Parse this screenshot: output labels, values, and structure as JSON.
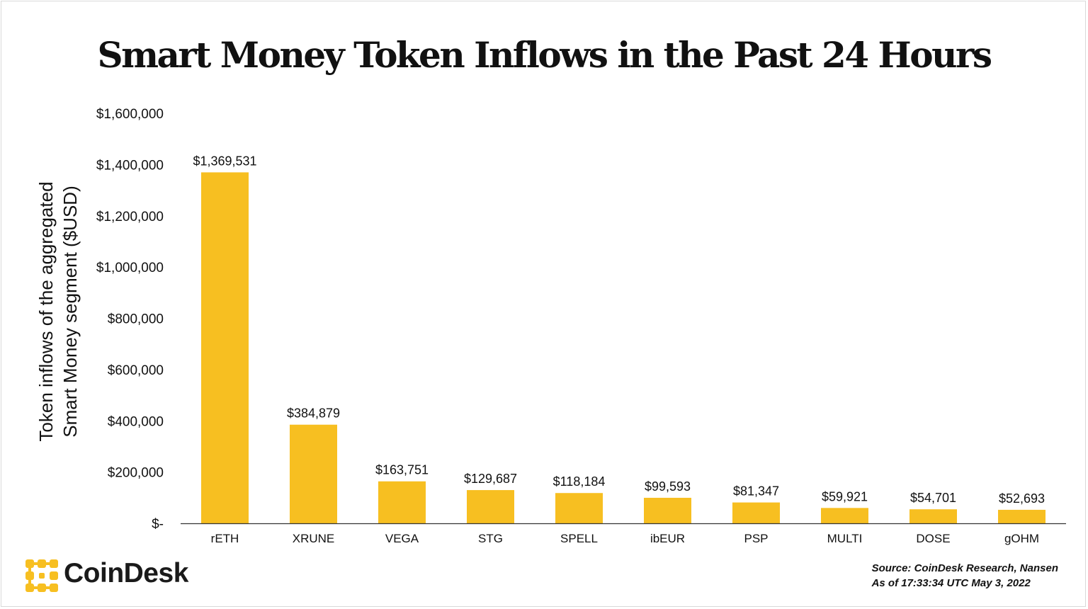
{
  "chart_data": {
    "type": "bar",
    "title": "Smart Money Token Inflows in the Past 24 Hours",
    "ylabel": [
      "Token inflows of the aggregated",
      "Smart Money segment ($USD)"
    ],
    "xlabel": "",
    "categories": [
      "rETH",
      "XRUNE",
      "VEGA",
      "STG",
      "SPELL",
      "ibEUR",
      "PSP",
      "MULTI",
      "DOSE",
      "gOHM"
    ],
    "values": [
      1369531,
      384879,
      163751,
      129687,
      118184,
      99593,
      81347,
      59921,
      54701,
      52693
    ],
    "data_labels": [
      "$1,369,531",
      "$384,879",
      "$163,751",
      "$129,687",
      "$118,184",
      "$99,593",
      "$81,347",
      "$59,921",
      "$54,701",
      "$52,693"
    ],
    "yticks": [
      0,
      200000,
      400000,
      600000,
      800000,
      1000000,
      1200000,
      1400000,
      1600000
    ],
    "ytick_labels": [
      "$-",
      "$200,000",
      "$400,000",
      "$600,000",
      "$800,000",
      "$1,000,000",
      "$1,200,000",
      "$1,400,000",
      "$1,600,000"
    ],
    "ylim": [
      0,
      1600000
    ],
    "grid": false,
    "bar_color": "#F7BF21"
  },
  "brand": {
    "name": "CoinDesk",
    "logo_color": "#F7BF21"
  },
  "source": {
    "line1": "Source: CoinDesk Research, Nansen",
    "line2": "As of 17:33:34 UTC May 3, 2022"
  }
}
